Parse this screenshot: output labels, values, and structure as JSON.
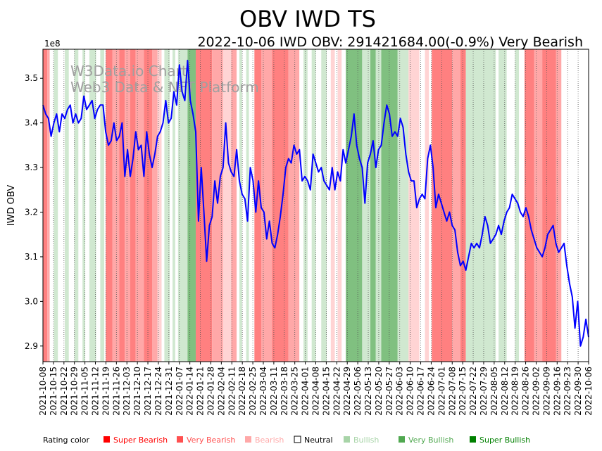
{
  "chart_data": {
    "type": "line",
    "title": "OBV IWD TS",
    "subtitle": "2022-10-06 IWD OBV: 291421684.00(-0.9%) Very Bearish",
    "ylabel": "IWD OBV",
    "xlabel": "",
    "y_multiplier_label": "1e8",
    "ylim": [
      2.865,
      3.565
    ],
    "yticks": [
      "2.9",
      "3.0",
      "3.1",
      "3.2",
      "3.3",
      "3.4",
      "3.5"
    ],
    "xticks": [
      "2021-10-08",
      "2021-10-15",
      "2021-10-22",
      "2021-10-29",
      "2021-11-05",
      "2021-11-12",
      "2021-11-19",
      "2021-11-26",
      "2021-12-03",
      "2021-12-10",
      "2021-12-17",
      "2021-12-24",
      "2021-12-31",
      "2022-01-07",
      "2022-01-14",
      "2022-01-21",
      "2022-01-28",
      "2022-02-04",
      "2022-02-11",
      "2022-02-18",
      "2022-02-25",
      "2022-03-04",
      "2022-03-11",
      "2022-03-18",
      "2022-03-25",
      "2022-04-01",
      "2022-04-08",
      "2022-04-15",
      "2022-04-22",
      "2022-04-29",
      "2022-05-06",
      "2022-05-13",
      "2022-05-20",
      "2022-05-27",
      "2022-06-03",
      "2022-06-10",
      "2022-06-17",
      "2022-06-24",
      "2022-07-01",
      "2022-07-08",
      "2022-07-15",
      "2022-07-22",
      "2022-07-29",
      "2022-08-05",
      "2022-08-12",
      "2022-08-19",
      "2022-08-26",
      "2022-09-02",
      "2022-09-09",
      "2022-09-16",
      "2022-09-23",
      "2022-09-30",
      "2022-10-06"
    ],
    "watermark": [
      "W3Data.io Chart",
      "Web3 Data & NFT Platform"
    ],
    "line_color": "#0000ff",
    "series": [
      {
        "name": "IWD OBV",
        "values": [
          3.44,
          3.42,
          3.41,
          3.37,
          3.4,
          3.42,
          3.38,
          3.42,
          3.41,
          3.43,
          3.44,
          3.4,
          3.42,
          3.4,
          3.41,
          3.46,
          3.43,
          3.44,
          3.45,
          3.41,
          3.43,
          3.44,
          3.44,
          3.38,
          3.35,
          3.36,
          3.4,
          3.36,
          3.37,
          3.4,
          3.28,
          3.34,
          3.28,
          3.32,
          3.38,
          3.34,
          3.35,
          3.28,
          3.38,
          3.33,
          3.3,
          3.33,
          3.37,
          3.38,
          3.4,
          3.45,
          3.4,
          3.41,
          3.47,
          3.44,
          3.53,
          3.47,
          3.45,
          3.54,
          3.45,
          3.42,
          3.38,
          3.18,
          3.3,
          3.2,
          3.09,
          3.17,
          3.19,
          3.27,
          3.22,
          3.28,
          3.3,
          3.4,
          3.31,
          3.29,
          3.28,
          3.34,
          3.27,
          3.24,
          3.23,
          3.18,
          3.3,
          3.27,
          3.2,
          3.27,
          3.21,
          3.2,
          3.14,
          3.18,
          3.13,
          3.12,
          3.15,
          3.19,
          3.24,
          3.3,
          3.32,
          3.31,
          3.35,
          3.33,
          3.34,
          3.27,
          3.28,
          3.27,
          3.25,
          3.33,
          3.31,
          3.29,
          3.3,
          3.27,
          3.26,
          3.25,
          3.3,
          3.25,
          3.29,
          3.27,
          3.34,
          3.31,
          3.34,
          3.37,
          3.42,
          3.35,
          3.32,
          3.3,
          3.22,
          3.31,
          3.33,
          3.36,
          3.3,
          3.34,
          3.35,
          3.4,
          3.44,
          3.42,
          3.37,
          3.38,
          3.37,
          3.41,
          3.39,
          3.33,
          3.29,
          3.27,
          3.27,
          3.21,
          3.23,
          3.24,
          3.23,
          3.32,
          3.35,
          3.3,
          3.21,
          3.24,
          3.22,
          3.2,
          3.18,
          3.2,
          3.17,
          3.16,
          3.11,
          3.08,
          3.09,
          3.07,
          3.1,
          3.13,
          3.12,
          3.13,
          3.12,
          3.15,
          3.19,
          3.17,
          3.13,
          3.14,
          3.15,
          3.17,
          3.15,
          3.18,
          3.2,
          3.21,
          3.24,
          3.23,
          3.22,
          3.2,
          3.19,
          3.21,
          3.19,
          3.16,
          3.14,
          3.12,
          3.11,
          3.1,
          3.12,
          3.15,
          3.16,
          3.17,
          3.13,
          3.11,
          3.12,
          3.13,
          3.08,
          3.04,
          3.01,
          2.94,
          3.0,
          2.9,
          2.92,
          2.96,
          2.92
        ]
      }
    ],
    "rating_bands": [
      [
        "r3",
        0,
        1.6
      ],
      [
        "r2",
        1.6,
        2.5
      ],
      [
        "n",
        2.5,
        4
      ],
      [
        "g1",
        4,
        5.5
      ],
      [
        "n",
        5.5,
        8
      ],
      [
        "g1",
        8,
        9.5
      ],
      [
        "n",
        9.5,
        11.5
      ],
      [
        "g1",
        11.5,
        13
      ],
      [
        "n",
        13,
        14.5
      ],
      [
        "g1",
        14.5,
        15.5
      ],
      [
        "n",
        15.5,
        17
      ],
      [
        "g1",
        17,
        19.5
      ],
      [
        "n",
        19.5,
        21
      ],
      [
        "g1",
        21,
        22.5
      ],
      [
        "n",
        22.5,
        23
      ],
      [
        "r3",
        23,
        25.5
      ],
      [
        "r2",
        25.5,
        28
      ],
      [
        "r3",
        28,
        30
      ],
      [
        "r2",
        30,
        32
      ],
      [
        "r3",
        32,
        34
      ],
      [
        "r2",
        34,
        37
      ],
      [
        "r3",
        37,
        40
      ],
      [
        "r2",
        40,
        42
      ],
      [
        "r1",
        42,
        43.5
      ],
      [
        "n",
        43.5,
        44.5
      ],
      [
        "g1",
        44.5,
        46.5
      ],
      [
        "n",
        46.5,
        47.5
      ],
      [
        "g1",
        47.5,
        48.5
      ],
      [
        "n",
        48.5,
        49.5
      ],
      [
        "g1",
        49.5,
        53
      ],
      [
        "g2",
        53,
        56
      ],
      [
        "r3",
        56,
        62
      ],
      [
        "r2",
        62,
        66
      ],
      [
        "r1",
        66,
        69
      ],
      [
        "r2",
        69,
        71
      ],
      [
        "n",
        71,
        72
      ],
      [
        "g1",
        72,
        73
      ],
      [
        "n",
        73,
        74.5
      ],
      [
        "g1",
        74.5,
        75.5
      ],
      [
        "n",
        75.5,
        77.5
      ],
      [
        "r3",
        77.5,
        80
      ],
      [
        "r2",
        80,
        84
      ],
      [
        "r3",
        84,
        90
      ],
      [
        "r2",
        90,
        94
      ],
      [
        "n",
        94,
        95.5
      ],
      [
        "g1",
        95.5,
        97
      ],
      [
        "n",
        97,
        98.5
      ],
      [
        "g1",
        98.5,
        100
      ],
      [
        "n",
        100,
        102
      ],
      [
        "g1",
        102,
        104
      ],
      [
        "n",
        104,
        105.5
      ],
      [
        "r1",
        105.5,
        107
      ],
      [
        "n",
        107,
        108
      ],
      [
        "r1",
        108,
        109.5
      ],
      [
        "n",
        109.5,
        111
      ],
      [
        "g2",
        111,
        117
      ],
      [
        "g1",
        117,
        120
      ],
      [
        "g2",
        120,
        122
      ],
      [
        "g1",
        122,
        124
      ],
      [
        "g2",
        124,
        130
      ],
      [
        "g1",
        130,
        134
      ],
      [
        "r1",
        134,
        138
      ],
      [
        "n",
        138,
        140
      ],
      [
        "r1",
        140,
        141.5
      ],
      [
        "n",
        141.5,
        142.5
      ],
      [
        "r3",
        142.5,
        150
      ],
      [
        "r2",
        150,
        153
      ],
      [
        "r3",
        153,
        155
      ],
      [
        "g1",
        155,
        166
      ],
      [
        "n",
        166,
        167
      ],
      [
        "g1",
        167,
        170
      ],
      [
        "n",
        170,
        173
      ],
      [
        "g1",
        173,
        174.5
      ],
      [
        "n",
        174.5,
        176.5
      ],
      [
        "r3",
        176.5,
        180
      ],
      [
        "r2",
        180,
        183
      ],
      [
        "r3",
        183,
        188
      ],
      [
        "r2",
        188,
        190
      ]
    ],
    "band_colors": {
      "r3": "#ff8080",
      "r2": "#ffa8a8",
      "r1": "#ffd4d4",
      "n": "#ffffff",
      "g1": "#d0e8d0",
      "g2": "#80c080"
    },
    "legend": {
      "title": "Rating color",
      "items": [
        {
          "label": "Super Bearish",
          "color": "#ff0000"
        },
        {
          "label": "Very Bearish",
          "color": "#ff5050"
        },
        {
          "label": "Bearish",
          "color": "#ffa8a8"
        },
        {
          "label": "Neutral",
          "color": "#ffffff"
        },
        {
          "label": "Bullish",
          "color": "#a8d4a8"
        },
        {
          "label": "Very Bullish",
          "color": "#50a850"
        },
        {
          "label": "Super Bullish",
          "color": "#008000"
        }
      ]
    }
  }
}
